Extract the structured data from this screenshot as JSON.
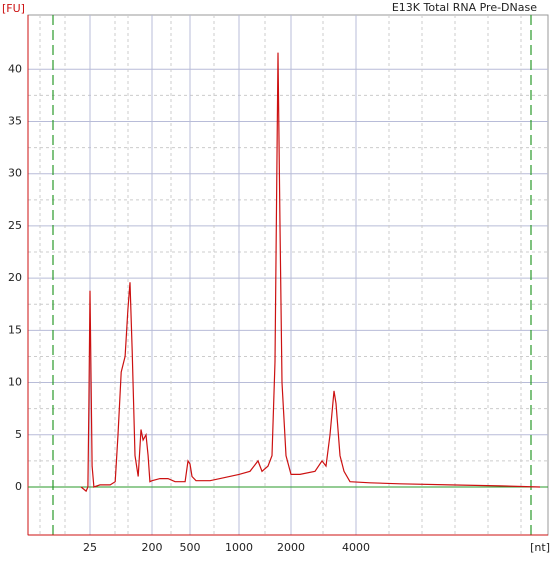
{
  "chart_data": {
    "type": "line",
    "title": "E13K Total RNA Pre-DNase",
    "ylabel": "[FU]",
    "xlabel": "[nt]",
    "x": [
      0,
      14,
      19,
      22,
      25,
      28,
      31,
      36,
      53,
      82,
      96,
      104,
      113,
      124,
      132,
      138,
      144,
      152,
      161,
      169,
      175,
      183,
      189,
      194,
      200,
      263,
      326,
      382,
      461,
      484,
      500,
      520,
      561,
      704,
      806,
      1000,
      1212,
      1365,
      1442,
      1558,
      1635,
      1692,
      1750,
      1788,
      1827,
      1904,
      2000,
      2277,
      2738,
      2954,
      3077,
      3200,
      3323,
      3385,
      3508,
      3631,
      3815,
      4431,
      5354,
      6892,
      8431,
      9662
    ],
    "series": [
      {
        "name": "E13K Total RNA Pre-DNase",
        "color": "#cc1111",
        "values": [
          0,
          -0.4,
          0,
          8,
          18.8,
          10,
          2,
          0,
          0.2,
          0.2,
          0.5,
          5,
          11,
          12.5,
          17,
          19.6,
          13,
          3,
          1,
          5.5,
          4.5,
          5,
          3,
          0.5,
          0.6,
          0.8,
          0.8,
          0.5,
          0.5,
          2.5,
          2.2,
          1,
          0.6,
          0.6,
          0.8,
          1.2,
          1.5,
          2.5,
          1.5,
          2,
          3,
          12,
          41.6,
          25,
          10,
          3,
          1.2,
          1.2,
          1.5,
          2.5,
          2,
          5,
          9.2,
          8,
          3,
          1.5,
          0.5,
          0.4,
          0.3,
          0.2,
          0.1,
          0
        ]
      }
    ],
    "xticks": [
      25,
      200,
      500,
      1000,
      2000,
      4000
    ],
    "ylim": [
      -4.6,
      45.2
    ],
    "yticks": [
      0,
      5,
      10,
      15,
      20,
      25,
      30,
      35,
      40
    ],
    "grid": true
  }
}
